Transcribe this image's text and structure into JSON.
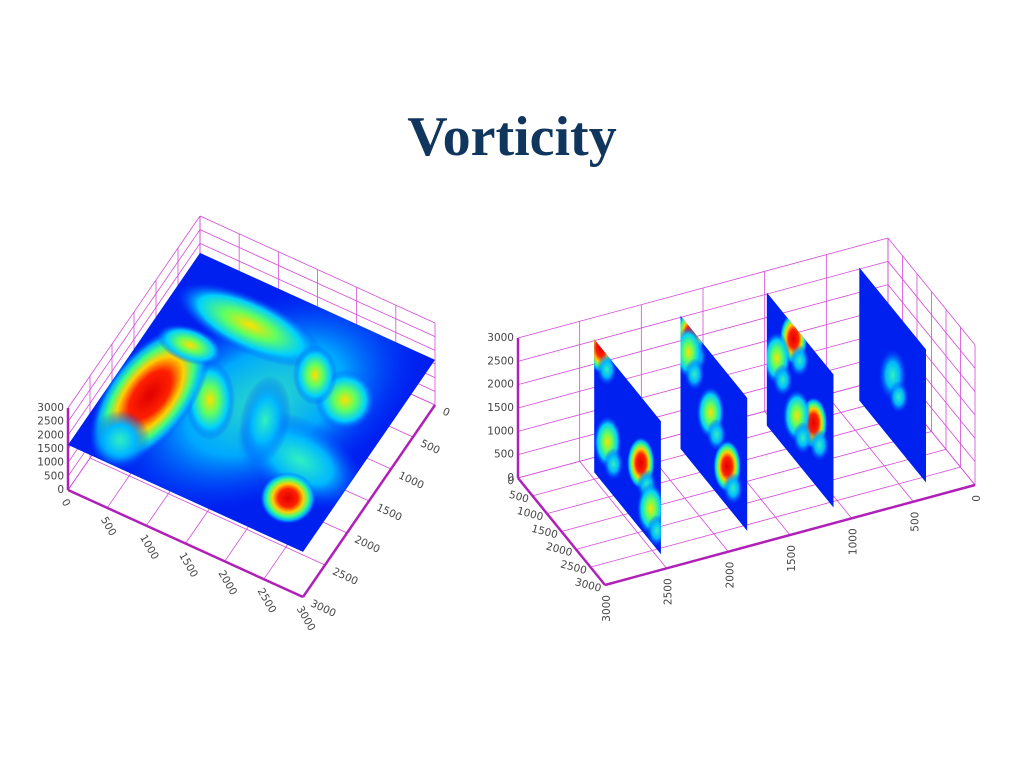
{
  "title": "Vorticity",
  "plots": [
    {
      "x_ticks": [
        0,
        500,
        1000,
        1500,
        2000,
        2500,
        3000
      ],
      "y_ticks": [
        0,
        500,
        1000,
        1500,
        2000,
        2500,
        3000
      ],
      "z_ticks": [
        0,
        500,
        1000,
        1500,
        2000,
        2500,
        3000
      ]
    },
    {
      "x_ticks": [
        0,
        500,
        1000,
        1500,
        2000,
        2500,
        3000
      ],
      "y_ticks": [
        0,
        500,
        1000,
        1500,
        2000,
        2500,
        3000
      ],
      "z_ticks": [
        0,
        500,
        1000,
        1500,
        2000,
        2500,
        3000
      ]
    }
  ]
}
